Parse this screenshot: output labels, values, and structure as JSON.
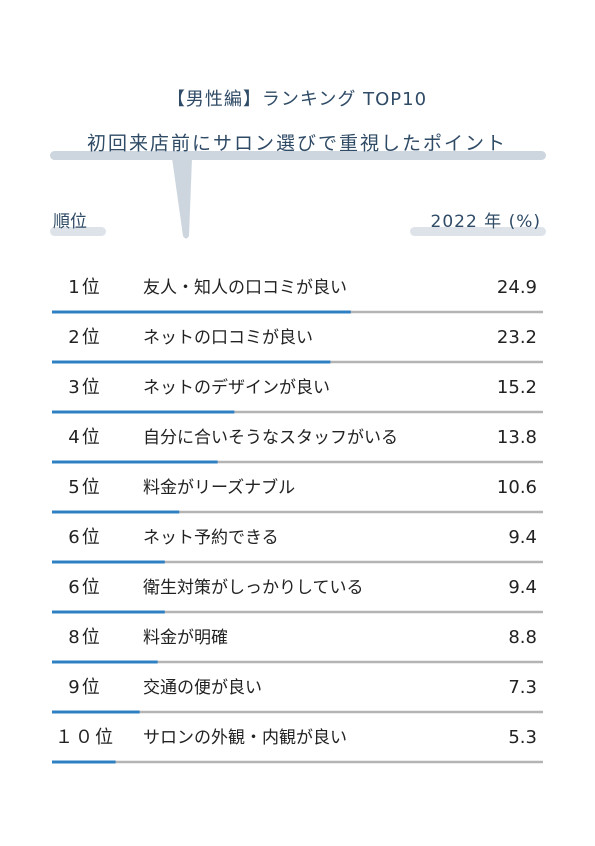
{
  "chart_data": {
    "type": "bar",
    "title": "【男性編】ランキング TOP10",
    "subtitle": "初回来店前にサロン選びで重視したポイント",
    "rank_header": "順位",
    "value_header": "2022 年 (%)",
    "ranks": [
      "1位",
      "2位",
      "3位",
      "4位",
      "5位",
      "6位",
      "6位",
      "8位",
      "9位",
      "１０位"
    ],
    "categories": [
      "友人・知人の口コミが良い",
      "ネットの口コミが良い",
      "ネットのデザインが良い",
      "自分に合いそうなスタッフがいる",
      "料金がリーズナブル",
      "ネット予約できる",
      "衛生対策がしっかりしている",
      "料金が明確",
      "交通の便が良い",
      "サロンの外観・内観が良い"
    ],
    "values": [
      24.9,
      23.2,
      15.2,
      13.8,
      10.6,
      9.4,
      9.4,
      8.8,
      7.3,
      5.3
    ],
    "color": "#2f80c3",
    "track_color": "#b4b4b4"
  }
}
